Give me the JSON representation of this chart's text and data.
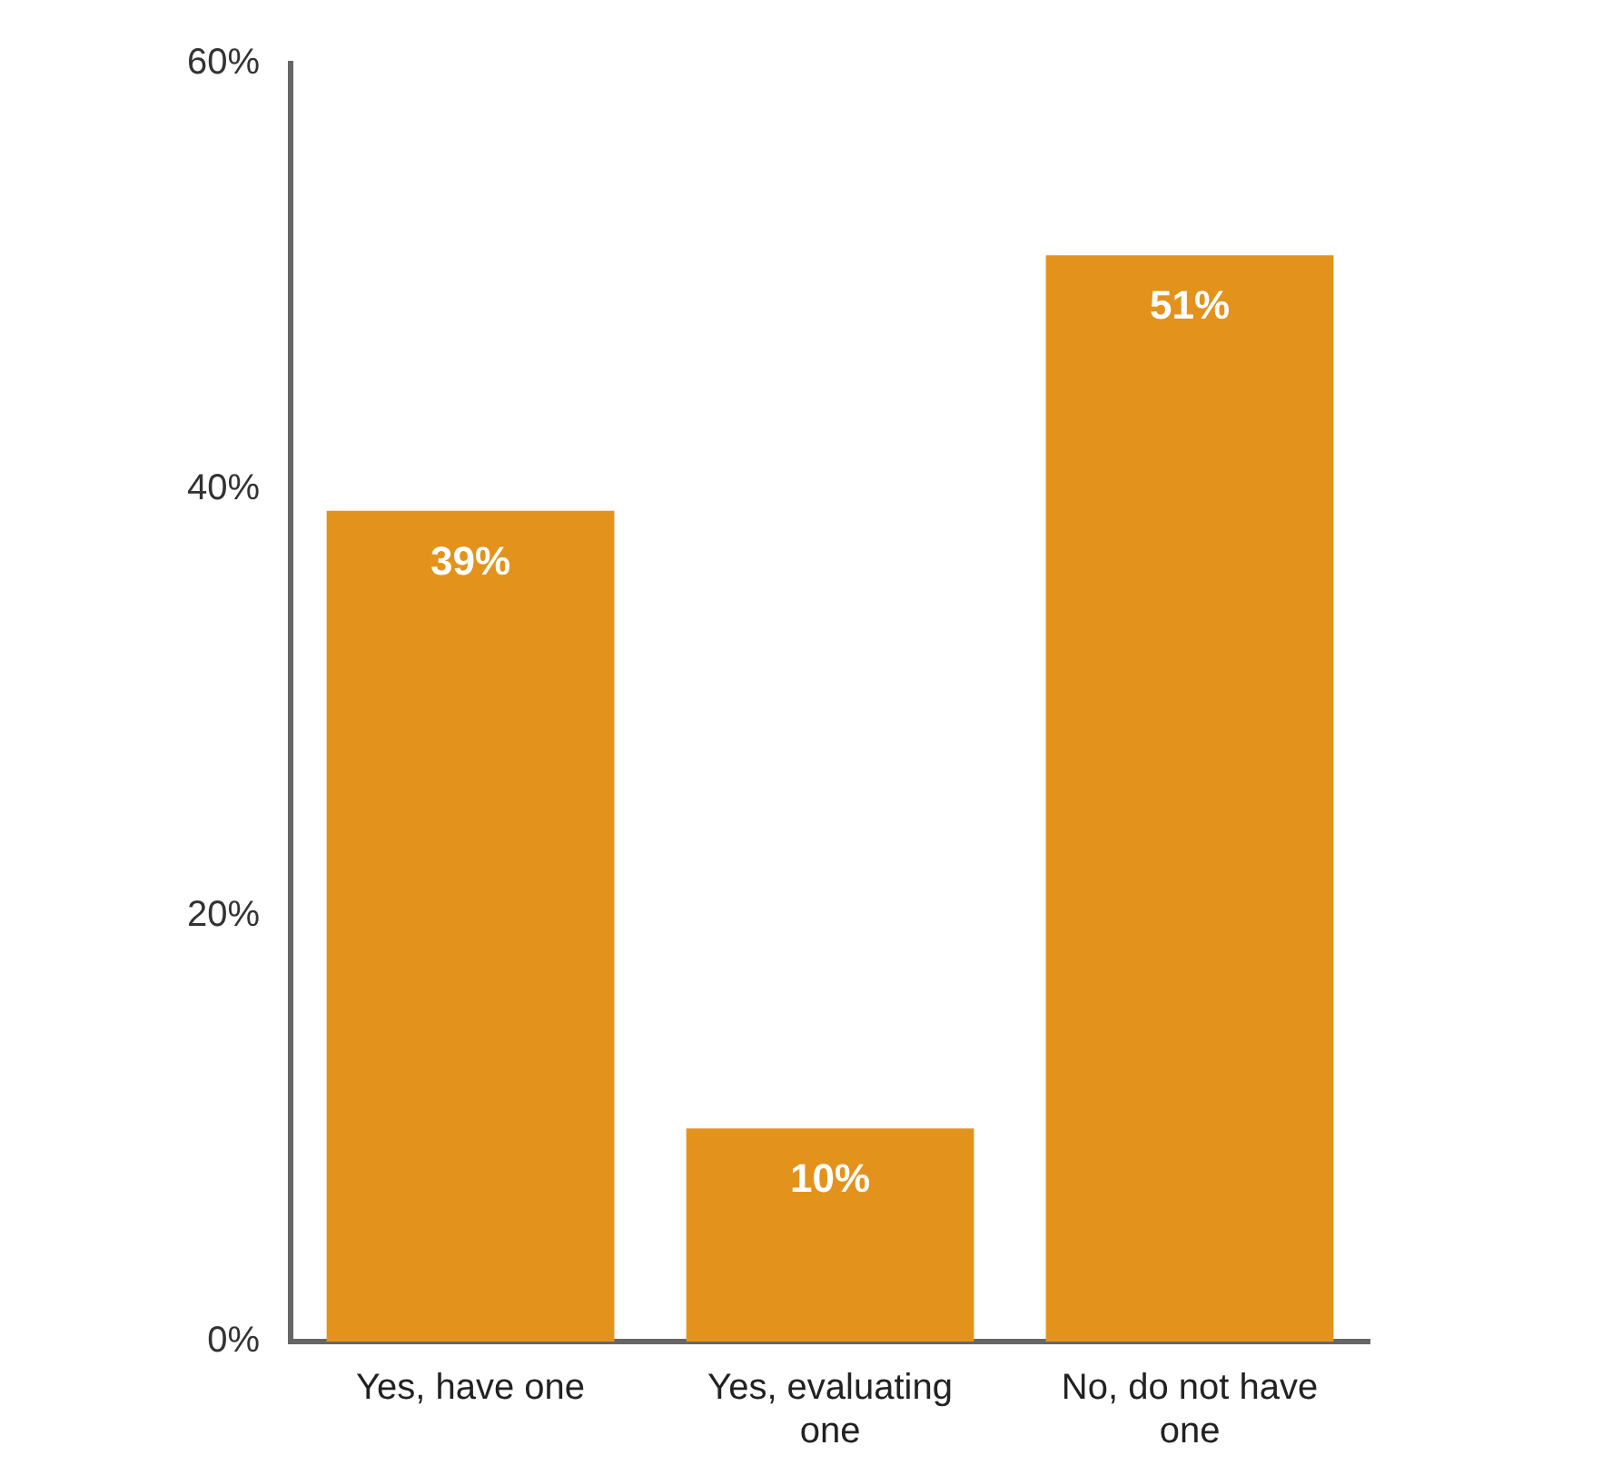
{
  "chart_data": {
    "type": "bar",
    "categories": [
      "Yes, have one",
      "Yes, evaluating one",
      "No, do not have one"
    ],
    "values": [
      39,
      10,
      51
    ],
    "color": "#e3931c",
    "ylim": [
      0,
      60
    ],
    "yticks": [
      {
        "value": 0,
        "label": "0%"
      },
      {
        "value": 20,
        "label": "20%"
      },
      {
        "value": 40,
        "label": "40%"
      },
      {
        "value": 60,
        "label": "60%"
      }
    ],
    "value_labels": [
      "39%",
      "10%",
      "51%"
    ],
    "grid": false,
    "legend": false
  }
}
